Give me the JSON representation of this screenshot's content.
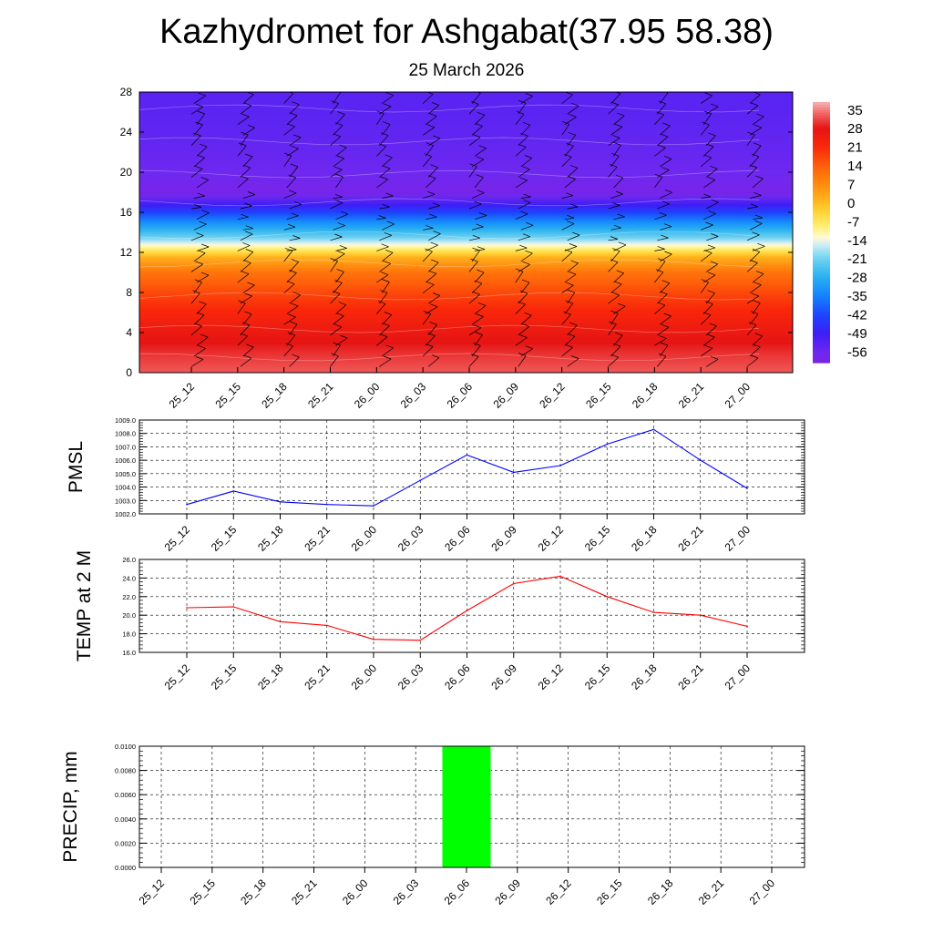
{
  "header": {
    "title": "Kazhydromet for Ashgabat(37.95 58.38)",
    "date": "25 March 2026"
  },
  "chart_data": [
    {
      "type": "heatmap",
      "name": "vertical-temperature-wind-cross-section",
      "title": "Kazhydromet for Ashgabat(37.95 58.38)",
      "subtitle": "25 March 2026",
      "x_categories": [
        "25_12",
        "25_15",
        "25_18",
        "25_21",
        "26_00",
        "26_03",
        "26_06",
        "26_09",
        "26_12",
        "26_15",
        "26_18",
        "26_21",
        "27_00"
      ],
      "y_ticks": [
        0,
        4,
        8,
        12,
        16,
        20,
        24,
        28
      ],
      "ylim": [
        0,
        28
      ],
      "y_profile": [
        0,
        2,
        4,
        6,
        8,
        10,
        11.5,
        12.5,
        13.5,
        15,
        16.5,
        18,
        20,
        24,
        28
      ],
      "temperature_profile": [
        33,
        30,
        26,
        22,
        17,
        11,
        2,
        -10,
        -21,
        -33,
        -47,
        -59,
        -56,
        -54,
        -53
      ],
      "colorbar": {
        "ticks": [
          35,
          28,
          21,
          14,
          7,
          0,
          -7,
          -14,
          -21,
          -28,
          -35,
          -42,
          -49,
          -56
        ],
        "min": -60,
        "max": 38
      },
      "wind_barbs": true
    },
    {
      "type": "line",
      "name": "pmsl",
      "ylabel": "PMSL",
      "categories": [
        "25_12",
        "25_15",
        "25_18",
        "25_21",
        "26_00",
        "26_03",
        "26_06",
        "26_09",
        "26_12",
        "26_15",
        "26_18",
        "26_21",
        "27_00"
      ],
      "values": [
        1002.7,
        1003.7,
        1002.9,
        1002.7,
        1002.6,
        1004.5,
        1006.4,
        1005.1,
        1005.6,
        1007.2,
        1008.3,
        1006.0,
        1003.9
      ],
      "ylim": [
        1002.0,
        1009.0
      ],
      "y_ticks": [
        "1002.0",
        "1003.0",
        "1004.0",
        "1005.0",
        "1006.0",
        "1007.0",
        "1008.0",
        "1009.0"
      ],
      "color": "#0000ff"
    },
    {
      "type": "line",
      "name": "temp-2m",
      "ylabel": "TEMP at 2 M",
      "categories": [
        "25_12",
        "25_15",
        "25_18",
        "25_21",
        "26_00",
        "26_03",
        "26_06",
        "26_09",
        "26_12",
        "26_15",
        "26_18",
        "26_21",
        "27_00"
      ],
      "values": [
        20.8,
        20.9,
        19.3,
        18.9,
        17.4,
        17.3,
        20.5,
        23.4,
        24.2,
        22.0,
        20.3,
        20.0,
        18.8
      ],
      "ylim": [
        16.0,
        26.0
      ],
      "y_ticks": [
        "16.0",
        "18.0",
        "20.0",
        "22.0",
        "24.0",
        "26.0"
      ],
      "color": "#ff0000"
    },
    {
      "type": "bar",
      "name": "precipitation",
      "ylabel": "PRECIP, mm",
      "categories": [
        "25_12",
        "25_15",
        "25_18",
        "25_21",
        "26_00",
        "26_03",
        "26_06",
        "26_09",
        "26_12",
        "26_15",
        "26_18",
        "26_21",
        "27_00"
      ],
      "values": [
        0,
        0,
        0,
        0,
        0,
        0,
        0.01,
        0,
        0,
        0,
        0,
        0,
        0
      ],
      "ylim": [
        0,
        0.01
      ],
      "y_ticks": [
        "0.0000",
        "0.0020",
        "0.0040",
        "0.0060",
        "0.0080",
        "0.0100"
      ],
      "color": "#00ff00"
    }
  ]
}
